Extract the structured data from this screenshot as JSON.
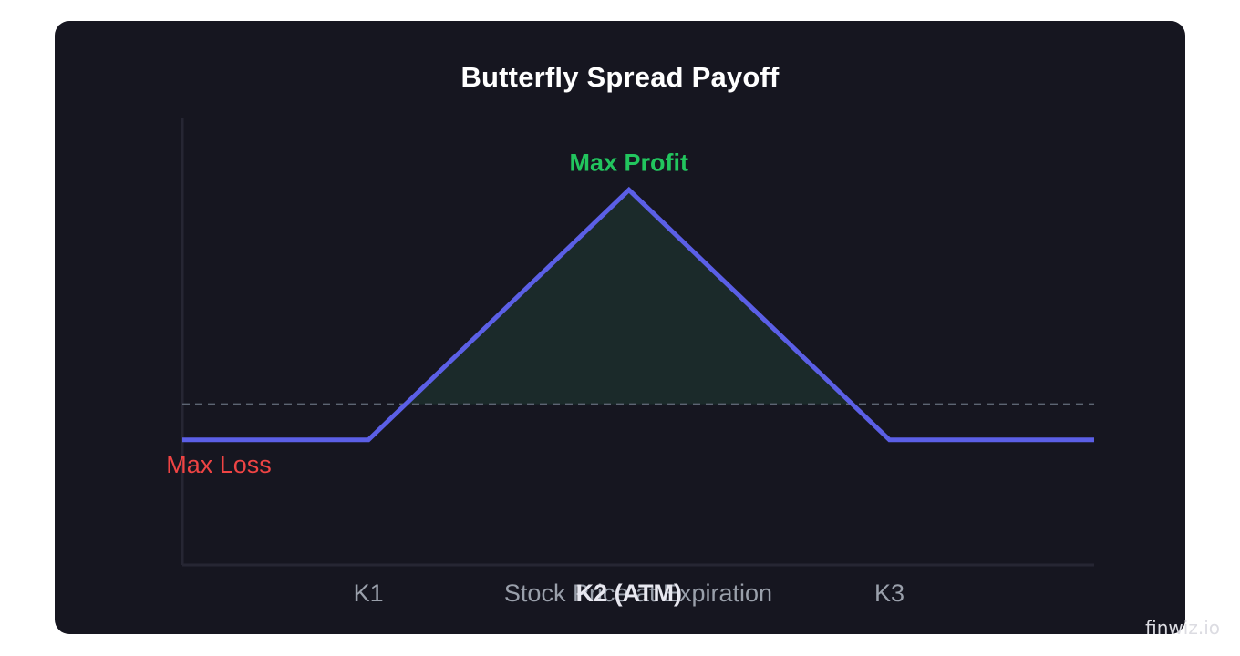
{
  "chart_data": {
    "type": "line",
    "title": "Butterfly Spread Payoff",
    "xlabel": "Stock Price at Expiration",
    "ylabel": "",
    "tick_labels": [
      {
        "x": 1.0,
        "label": "K1"
      },
      {
        "x": 2.4,
        "label": "K2 (ATM)"
      },
      {
        "x": 3.8,
        "label": "K3"
      }
    ],
    "series": [
      {
        "points": [
          [
            0.0,
            -1
          ],
          [
            1.0,
            -1
          ],
          [
            2.4,
            6
          ],
          [
            3.8,
            -1
          ],
          [
            4.9,
            -1
          ]
        ]
      }
    ],
    "zero_line": 0,
    "xlim": [
      0.0,
      4.9
    ],
    "ylim": [
      -4.5,
      8
    ],
    "annotations": [
      {
        "text": "Max Profit",
        "x": 2.4,
        "y": 6,
        "role": "profit"
      },
      {
        "text": "Max Loss",
        "x": 0.5,
        "y": -1,
        "role": "loss"
      }
    ],
    "grid": false
  },
  "colors": {
    "payoff_line": "#5b5fe6",
    "profit": "#22c55e",
    "loss": "#ef4444",
    "profit_area": "#1b2a2a",
    "zero_line": "#5d6573",
    "axis": "#262633",
    "tick_text": "#9aa0ab",
    "xlabel_text": "#9aa0ab",
    "atm_tick_text": "#e8e8f0"
  },
  "watermark": "finwiz.io"
}
